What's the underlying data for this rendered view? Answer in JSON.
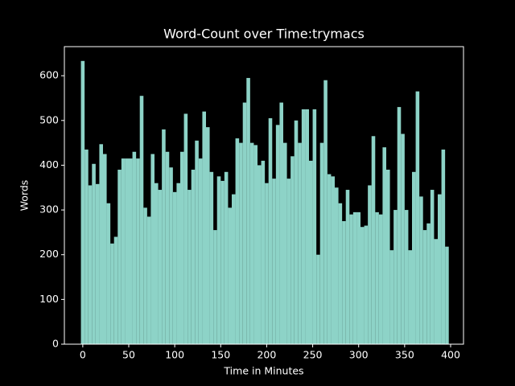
{
  "chart_data": {
    "type": "bar",
    "title": "Word-Count over Time:trymacs",
    "x_label": "Time in Minutes",
    "y_label": "Words",
    "color": "#8dd3c7",
    "x": [
      0,
      4,
      8,
      12,
      16,
      20,
      24,
      28,
      32,
      36,
      40,
      44,
      48,
      52,
      56,
      60,
      64,
      68,
      72,
      76,
      80,
      84,
      88,
      92,
      96,
      100,
      104,
      108,
      112,
      116,
      120,
      124,
      128,
      132,
      136,
      140,
      144,
      148,
      152,
      156,
      160,
      164,
      168,
      172,
      176,
      180,
      184,
      188,
      192,
      196,
      200,
      204,
      208,
      212,
      216,
      220,
      224,
      228,
      232,
      236,
      240,
      244,
      248,
      252,
      256,
      260,
      264,
      268,
      272,
      276,
      280,
      284,
      288,
      292,
      296,
      300,
      304,
      308,
      312,
      316,
      320,
      324,
      328,
      332,
      336,
      340,
      344,
      348,
      352,
      356,
      360,
      364,
      368,
      372,
      376,
      380,
      384,
      388,
      392,
      396
    ],
    "values": [
      633,
      435,
      355,
      403,
      358,
      447,
      425,
      315,
      225,
      240,
      390,
      415,
      415,
      415,
      430,
      415,
      555,
      305,
      285,
      425,
      360,
      345,
      480,
      430,
      395,
      340,
      360,
      430,
      515,
      345,
      390,
      455,
      415,
      520,
      485,
      385,
      255,
      375,
      365,
      385,
      305,
      335,
      460,
      450,
      540,
      595,
      450,
      445,
      400,
      410,
      360,
      505,
      370,
      490,
      540,
      450,
      370,
      420,
      500,
      450,
      525,
      525,
      410,
      525,
      200,
      450,
      590,
      380,
      375,
      350,
      315,
      275,
      345,
      290,
      295,
      295,
      262,
      265,
      355,
      465,
      295,
      290,
      440,
      390,
      210,
      300,
      530,
      470,
      300,
      210,
      385,
      565,
      330,
      255,
      270,
      345,
      235,
      335,
      435,
      218
    ],
    "xlim": [
      -20,
      414
    ],
    "xticks": [
      0,
      50,
      100,
      150,
      200,
      250,
      300,
      350,
      400
    ],
    "ylim": [
      0,
      665
    ],
    "yticks": [
      0,
      100,
      200,
      300,
      400,
      500,
      600
    ]
  }
}
